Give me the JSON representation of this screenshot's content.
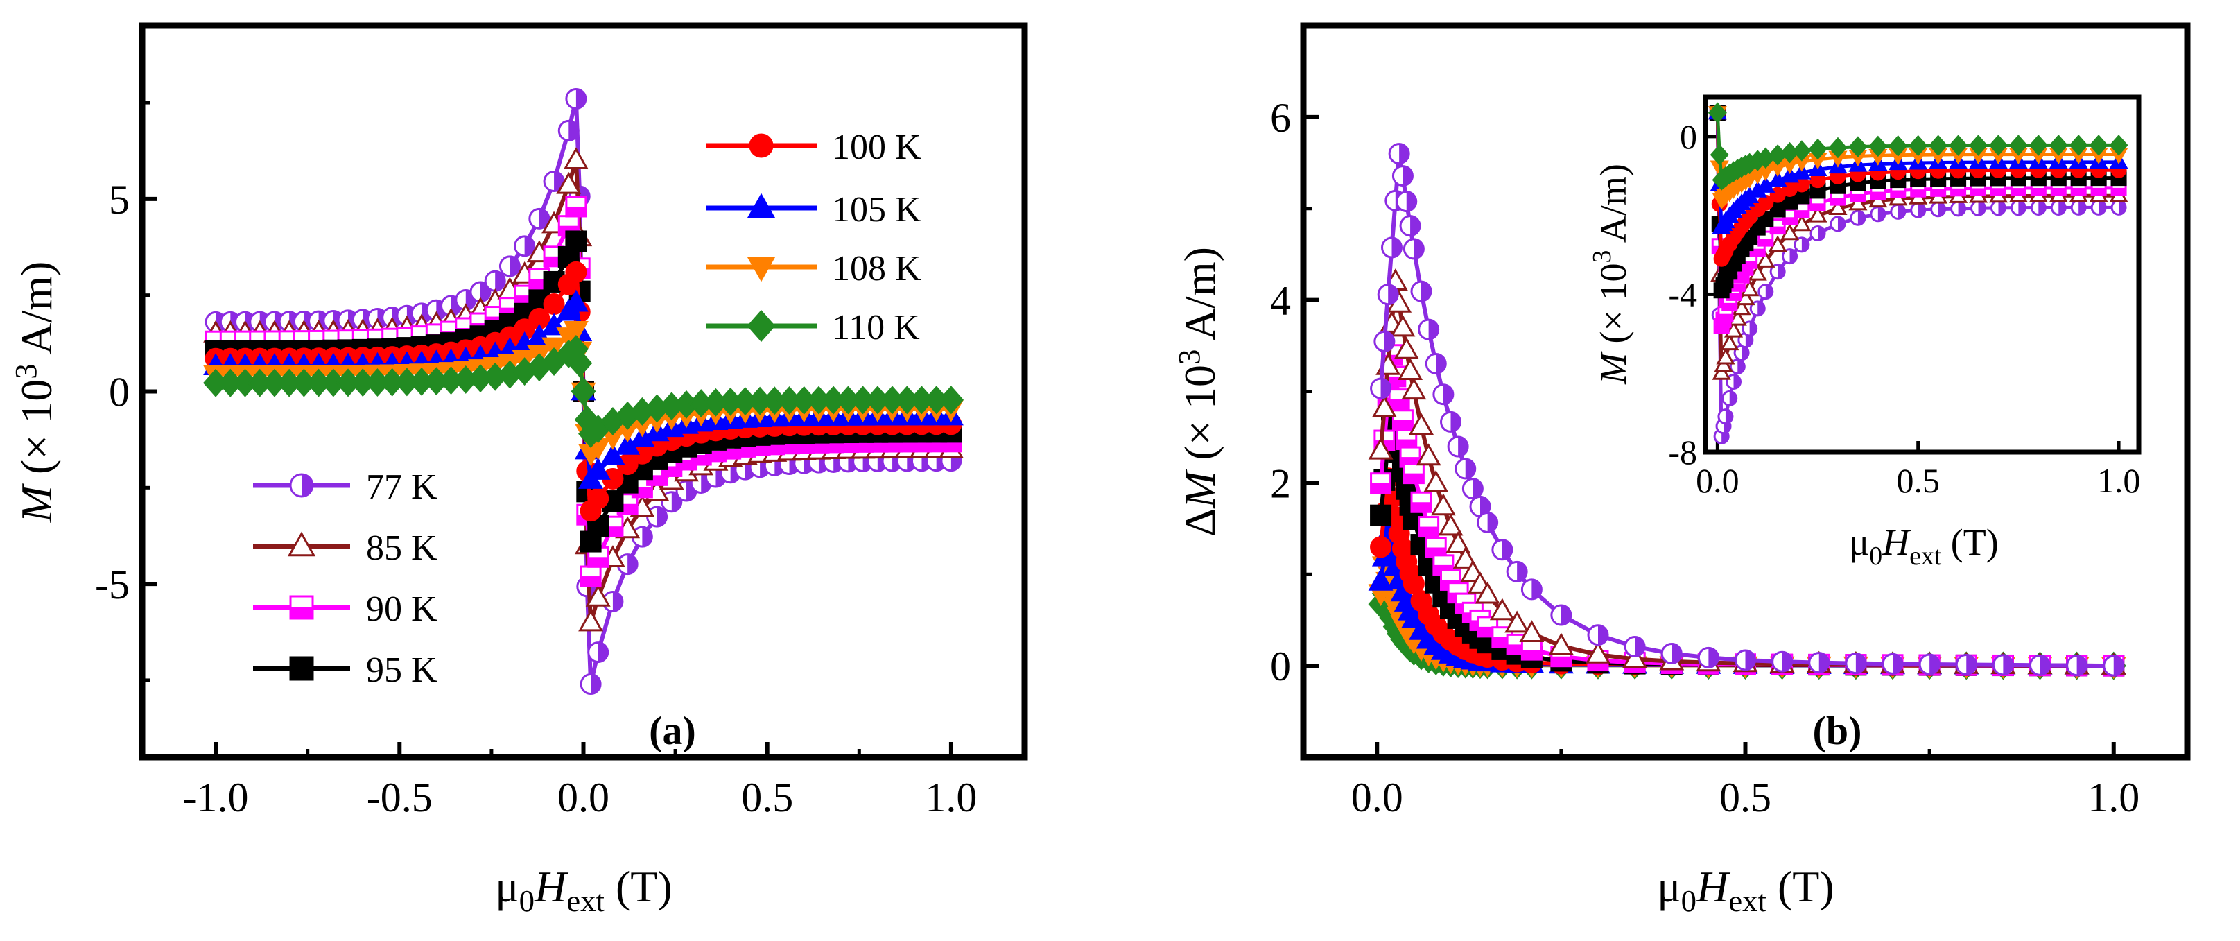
{
  "chart_data": [
    {
      "panel": "a",
      "type": "line",
      "xlabel": "μ0Hext (T)",
      "ylabel": "M (× 10^3 A/m)",
      "xlim": [
        -1.2,
        1.2
      ],
      "ylim": [
        -9.5,
        9.5
      ],
      "x_ticks": [
        -1.0,
        -0.5,
        0.0,
        0.5,
        1.0
      ],
      "x_tick_labels": [
        "-1.0",
        "-0.5",
        "0.0",
        "0.5",
        "1.0"
      ],
      "y_ticks": [
        -5,
        0,
        5
      ],
      "y_tick_labels": [
        "-5",
        "0",
        "5"
      ],
      "series": [
        {
          "name": "77 K",
          "color": "#8B2BE2",
          "marker": "half-circle",
          "peak": 7.6,
          "tail": 1.8
        },
        {
          "name": "85 K",
          "color": "#8B1A1A",
          "marker": "open-triangle",
          "peak": 6.0,
          "tail": 1.5
        },
        {
          "name": "90 K",
          "color": "#FF00FF",
          "marker": "half-square",
          "peak": 4.8,
          "tail": 1.3
        },
        {
          "name": "95 K",
          "color": "#000000",
          "marker": "square",
          "peak": 3.9,
          "tail": 1.05
        },
        {
          "name": "100 K",
          "color": "#FF0000",
          "marker": "circle",
          "peak": 3.1,
          "tail": 0.85
        },
        {
          "name": "105 K",
          "color": "#0000FF",
          "marker": "triangle",
          "peak": 2.3,
          "tail": 0.65
        },
        {
          "name": "108 K",
          "color": "#FF8000",
          "marker": "triangle-down",
          "peak": 1.6,
          "tail": 0.45
        },
        {
          "name": "110 K",
          "color": "#228B22",
          "marker": "diamond",
          "peak": 1.1,
          "tail": 0.22
        }
      ],
      "legend_left": [
        "77 K",
        "85 K",
        "90 K",
        "95 K"
      ],
      "legend_right": [
        "100 K",
        "105 K",
        "108 K",
        "110 K"
      ],
      "annotation": "(a)"
    },
    {
      "panel": "b",
      "type": "line",
      "xlabel": "μ0Hext (T)",
      "ylabel": "ΔM (× 10^3 A/m)",
      "xlim": [
        -0.1,
        1.1
      ],
      "ylim": [
        -1.0,
        7.0
      ],
      "x_ticks": [
        0.0,
        0.5,
        1.0
      ],
      "x_tick_labels": [
        "0.0",
        "0.5",
        "1.0"
      ],
      "y_ticks": [
        0,
        2,
        4,
        6
      ],
      "y_tick_labels": [
        "0",
        "2",
        "4",
        "6"
      ],
      "series": [
        {
          "name": "77 K",
          "peak": 5.6,
          "peak_x": 0.03
        },
        {
          "name": "85 K",
          "peak": 4.2,
          "peak_x": 0.025
        },
        {
          "name": "90 K",
          "peak": 3.4,
          "peak_x": 0.02
        },
        {
          "name": "95 K",
          "peak": 2.8,
          "peak_x": 0.02
        },
        {
          "name": "100 K",
          "peak": 2.05,
          "peak_x": 0.015
        },
        {
          "name": "105 K",
          "peak": 1.45,
          "peak_x": 0.015
        },
        {
          "name": "108 K",
          "peak": 1.1,
          "peak_x": 0.01
        },
        {
          "name": "110 K",
          "peak": 0.85,
          "peak_x": 0.008
        }
      ],
      "annotation": "(b)",
      "inset": {
        "type": "line",
        "xlabel": "μ0Hext (T)",
        "ylabel": "M (× 10^3 A/m)",
        "xlim": [
          -0.03,
          1.05
        ],
        "ylim": [
          -8.0,
          1.0
        ],
        "x_ticks": [
          0.0,
          0.5,
          1.0
        ],
        "x_tick_labels": [
          "0.0",
          "0.5",
          "1.0"
        ],
        "y_ticks": [
          -8,
          -4,
          0
        ],
        "y_tick_labels": [
          "-8",
          "-4",
          "0"
        ]
      }
    }
  ]
}
